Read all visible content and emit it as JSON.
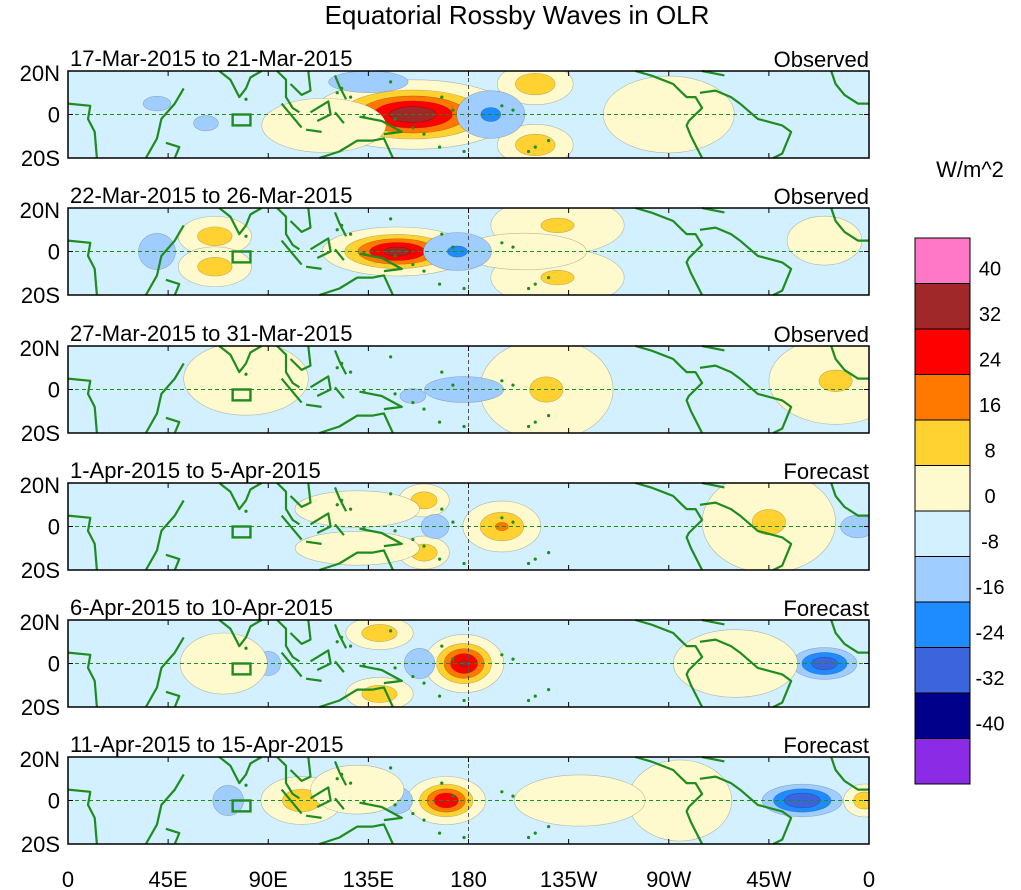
{
  "chart_data": {
    "type": "heatmap",
    "title": "Equatorial Rossby Waves in OLR",
    "units_label": "W/m^2",
    "x_tick_labels": [
      "0",
      "45E",
      "90E",
      "135E",
      "180",
      "135W",
      "90W",
      "45W",
      "0"
    ],
    "x_tick_lons": [
      0,
      45,
      90,
      135,
      180,
      225,
      270,
      315,
      360
    ],
    "y_tick_labels": [
      "20N",
      "0",
      "20S"
    ],
    "y_tick_lats": [
      20,
      0,
      -20
    ],
    "lon_range": [
      0,
      360
    ],
    "lat_range": [
      -20,
      20
    ],
    "box_region": {
      "lon": [
        74,
        82
      ],
      "lat": [
        -5,
        0
      ]
    },
    "panels": [
      {
        "date_range": "17-Mar-2015 to 21-Mar-2015",
        "status": "Observed",
        "anomalies": [
          {
            "lon": 155,
            "lat": 0,
            "value": 40,
            "dlon": 20,
            "dlat": 7
          },
          {
            "lon": 210,
            "lat": 14,
            "value": 18,
            "dlon": 9,
            "dlat": 5
          },
          {
            "lon": 210,
            "lat": -14,
            "value": 18,
            "dlon": 9,
            "dlat": 5
          },
          {
            "lon": 190,
            "lat": 0,
            "value": -20,
            "dlon": 14,
            "dlat": 10
          },
          {
            "lon": 135,
            "lat": 15,
            "value": -18,
            "dlon": 18,
            "dlat": 5
          },
          {
            "lon": 115,
            "lat": -5,
            "value": 10,
            "dlon": 18,
            "dlat": 8
          },
          {
            "lon": 40,
            "lat": 5,
            "value": -12,
            "dlon": 15,
            "dlat": 8
          },
          {
            "lon": 62,
            "lat": -4,
            "value": -14,
            "dlon": 8,
            "dlat": 5
          },
          {
            "lon": 270,
            "lat": 0,
            "value": 6,
            "dlon": 25,
            "dlat": 15
          },
          {
            "lon": 300,
            "lat": 5,
            "value": -9,
            "dlon": 30,
            "dlat": 12
          }
        ]
      },
      {
        "date_range": "22-Mar-2015 to 26-Mar-2015",
        "status": "Observed",
        "anomalies": [
          {
            "lon": 148,
            "lat": 0,
            "value": 38,
            "dlon": 15,
            "dlat": 5
          },
          {
            "lon": 220,
            "lat": 12,
            "value": 12,
            "dlon": 18,
            "dlat": 8
          },
          {
            "lon": 220,
            "lat": -12,
            "value": 12,
            "dlon": 18,
            "dlat": 8
          },
          {
            "lon": 205,
            "lat": 0,
            "value": 8,
            "dlon": 20,
            "dlat": 6
          },
          {
            "lon": 175,
            "lat": 0,
            "value": -20,
            "dlon": 14,
            "dlat": 8
          },
          {
            "lon": 66,
            "lat": 7,
            "value": 16,
            "dlon": 9,
            "dlat": 5
          },
          {
            "lon": 66,
            "lat": -7,
            "value": 16,
            "dlon": 9,
            "dlat": 5
          },
          {
            "lon": 40,
            "lat": 0,
            "value": -14,
            "dlon": 12,
            "dlat": 12
          },
          {
            "lon": 105,
            "lat": 0,
            "value": -10,
            "dlon": 15,
            "dlat": 14
          },
          {
            "lon": 280,
            "lat": 0,
            "value": -9,
            "dlon": 40,
            "dlat": 18
          },
          {
            "lon": 340,
            "lat": 5,
            "value": 8,
            "dlon": 12,
            "dlat": 8
          }
        ]
      },
      {
        "date_range": "27-Mar-2015 to 31-Mar-2015",
        "status": "Observed",
        "anomalies": [
          {
            "lon": 215,
            "lat": 0,
            "value": 12,
            "dlon": 18,
            "dlat": 14
          },
          {
            "lon": 178,
            "lat": 0,
            "value": -18,
            "dlon": 18,
            "dlat": 6
          },
          {
            "lon": 155,
            "lat": -3,
            "value": -12,
            "dlon": 14,
            "dlat": 8
          },
          {
            "lon": 345,
            "lat": 4,
            "value": 12,
            "dlon": 18,
            "dlat": 12
          },
          {
            "lon": 80,
            "lat": 5,
            "value": 8,
            "dlon": 20,
            "dlat": 12
          },
          {
            "lon": 45,
            "lat": 0,
            "value": -10,
            "dlon": 12,
            "dlat": 10
          },
          {
            "lon": 115,
            "lat": 5,
            "value": -9,
            "dlon": 15,
            "dlat": 8
          },
          {
            "lon": 260,
            "lat": -5,
            "value": -9,
            "dlon": 20,
            "dlat": 10
          },
          {
            "lon": 275,
            "lat": 12,
            "value": -9,
            "dlon": 15,
            "dlat": 5
          }
        ]
      },
      {
        "date_range": "1-Apr-2015 to 5-Apr-2015",
        "status": "Forecast",
        "anomalies": [
          {
            "lon": 195,
            "lat": 0,
            "value": 20,
            "dlon": 9,
            "dlat": 6
          },
          {
            "lon": 160,
            "lat": 12,
            "value": 18,
            "dlon": 6,
            "dlat": 4
          },
          {
            "lon": 160,
            "lat": -12,
            "value": 18,
            "dlon": 6,
            "dlat": 4
          },
          {
            "lon": 130,
            "lat": 8,
            "value": 8,
            "dlon": 20,
            "dlat": 6
          },
          {
            "lon": 130,
            "lat": -10,
            "value": 10,
            "dlon": 18,
            "dlat": 5
          },
          {
            "lon": 165,
            "lat": 0,
            "value": -14,
            "dlon": 9,
            "dlat": 8
          },
          {
            "lon": 220,
            "lat": 0,
            "value": -8,
            "dlon": 14,
            "dlat": 8
          },
          {
            "lon": 315,
            "lat": 2,
            "value": 12,
            "dlon": 18,
            "dlat": 14
          },
          {
            "lon": 355,
            "lat": 0,
            "value": -16,
            "dlon": 9,
            "dlat": 6
          },
          {
            "lon": 55,
            "lat": 0,
            "value": -10,
            "dlon": 9,
            "dlat": 12
          }
        ]
      },
      {
        "date_range": "6-Apr-2015 to 10-Apr-2015",
        "status": "Forecast",
        "anomalies": [
          {
            "lon": 178,
            "lat": 0,
            "value": 36,
            "dlon": 8,
            "dlat": 6
          },
          {
            "lon": 140,
            "lat": 14,
            "value": 18,
            "dlon": 8,
            "dlat": 4
          },
          {
            "lon": 140,
            "lat": -14,
            "value": 18,
            "dlon": 8,
            "dlat": 4
          },
          {
            "lon": 158,
            "lat": 0,
            "value": -16,
            "dlon": 8,
            "dlat": 8
          },
          {
            "lon": 340,
            "lat": 0,
            "value": -32,
            "dlon": 10,
            "dlat": 5
          },
          {
            "lon": 300,
            "lat": 0,
            "value": 10,
            "dlon": 18,
            "dlat": 10
          },
          {
            "lon": 90,
            "lat": 0,
            "value": -14,
            "dlon": 8,
            "dlat": 8
          },
          {
            "lon": 110,
            "lat": -8,
            "value": -10,
            "dlon": 12,
            "dlat": 6
          },
          {
            "lon": 70,
            "lat": 0,
            "value": 8,
            "dlon": 14,
            "dlat": 10
          }
        ]
      },
      {
        "date_range": "11-Apr-2015 to 15-Apr-2015",
        "status": "Forecast",
        "anomalies": [
          {
            "lon": 170,
            "lat": 0,
            "value": 34,
            "dlon": 8,
            "dlat": 5
          },
          {
            "lon": 148,
            "lat": 0,
            "value": -16,
            "dlon": 8,
            "dlat": 7
          },
          {
            "lon": 330,
            "lat": 0,
            "value": -34,
            "dlon": 12,
            "dlat": 5
          },
          {
            "lon": 358,
            "lat": 0,
            "value": 18,
            "dlon": 5,
            "dlat": 4
          },
          {
            "lon": 275,
            "lat": 0,
            "value": 10,
            "dlon": 15,
            "dlat": 12
          },
          {
            "lon": 105,
            "lat": 0,
            "value": 16,
            "dlon": 10,
            "dlat": 6
          },
          {
            "lon": 72,
            "lat": 0,
            "value": -16,
            "dlon": 8,
            "dlat": 8
          },
          {
            "lon": 130,
            "lat": 5,
            "value": 8,
            "dlon": 15,
            "dlat": 8
          },
          {
            "lon": 230,
            "lat": 0,
            "value": 6,
            "dlon": 25,
            "dlat": 10
          }
        ]
      }
    ],
    "colorbar": {
      "tick_labels": [
        "40",
        "32",
        "24",
        "16",
        "8",
        "0",
        "-8",
        "-16",
        "-24",
        "-32",
        "-40"
      ],
      "levels": [
        -40,
        -32,
        -24,
        -16,
        -8,
        0,
        8,
        16,
        24,
        32,
        40
      ],
      "colors": [
        "#8b2be6",
        "#00008b",
        "#3c64dc",
        "#1e8cff",
        "#a0cdff",
        "#d2f0ff",
        "#fffacd",
        "#ffd232",
        "#ff7800",
        "#ff0000",
        "#a02828",
        "#ff78c8"
      ]
    },
    "land_color": "#1e8c1e"
  }
}
